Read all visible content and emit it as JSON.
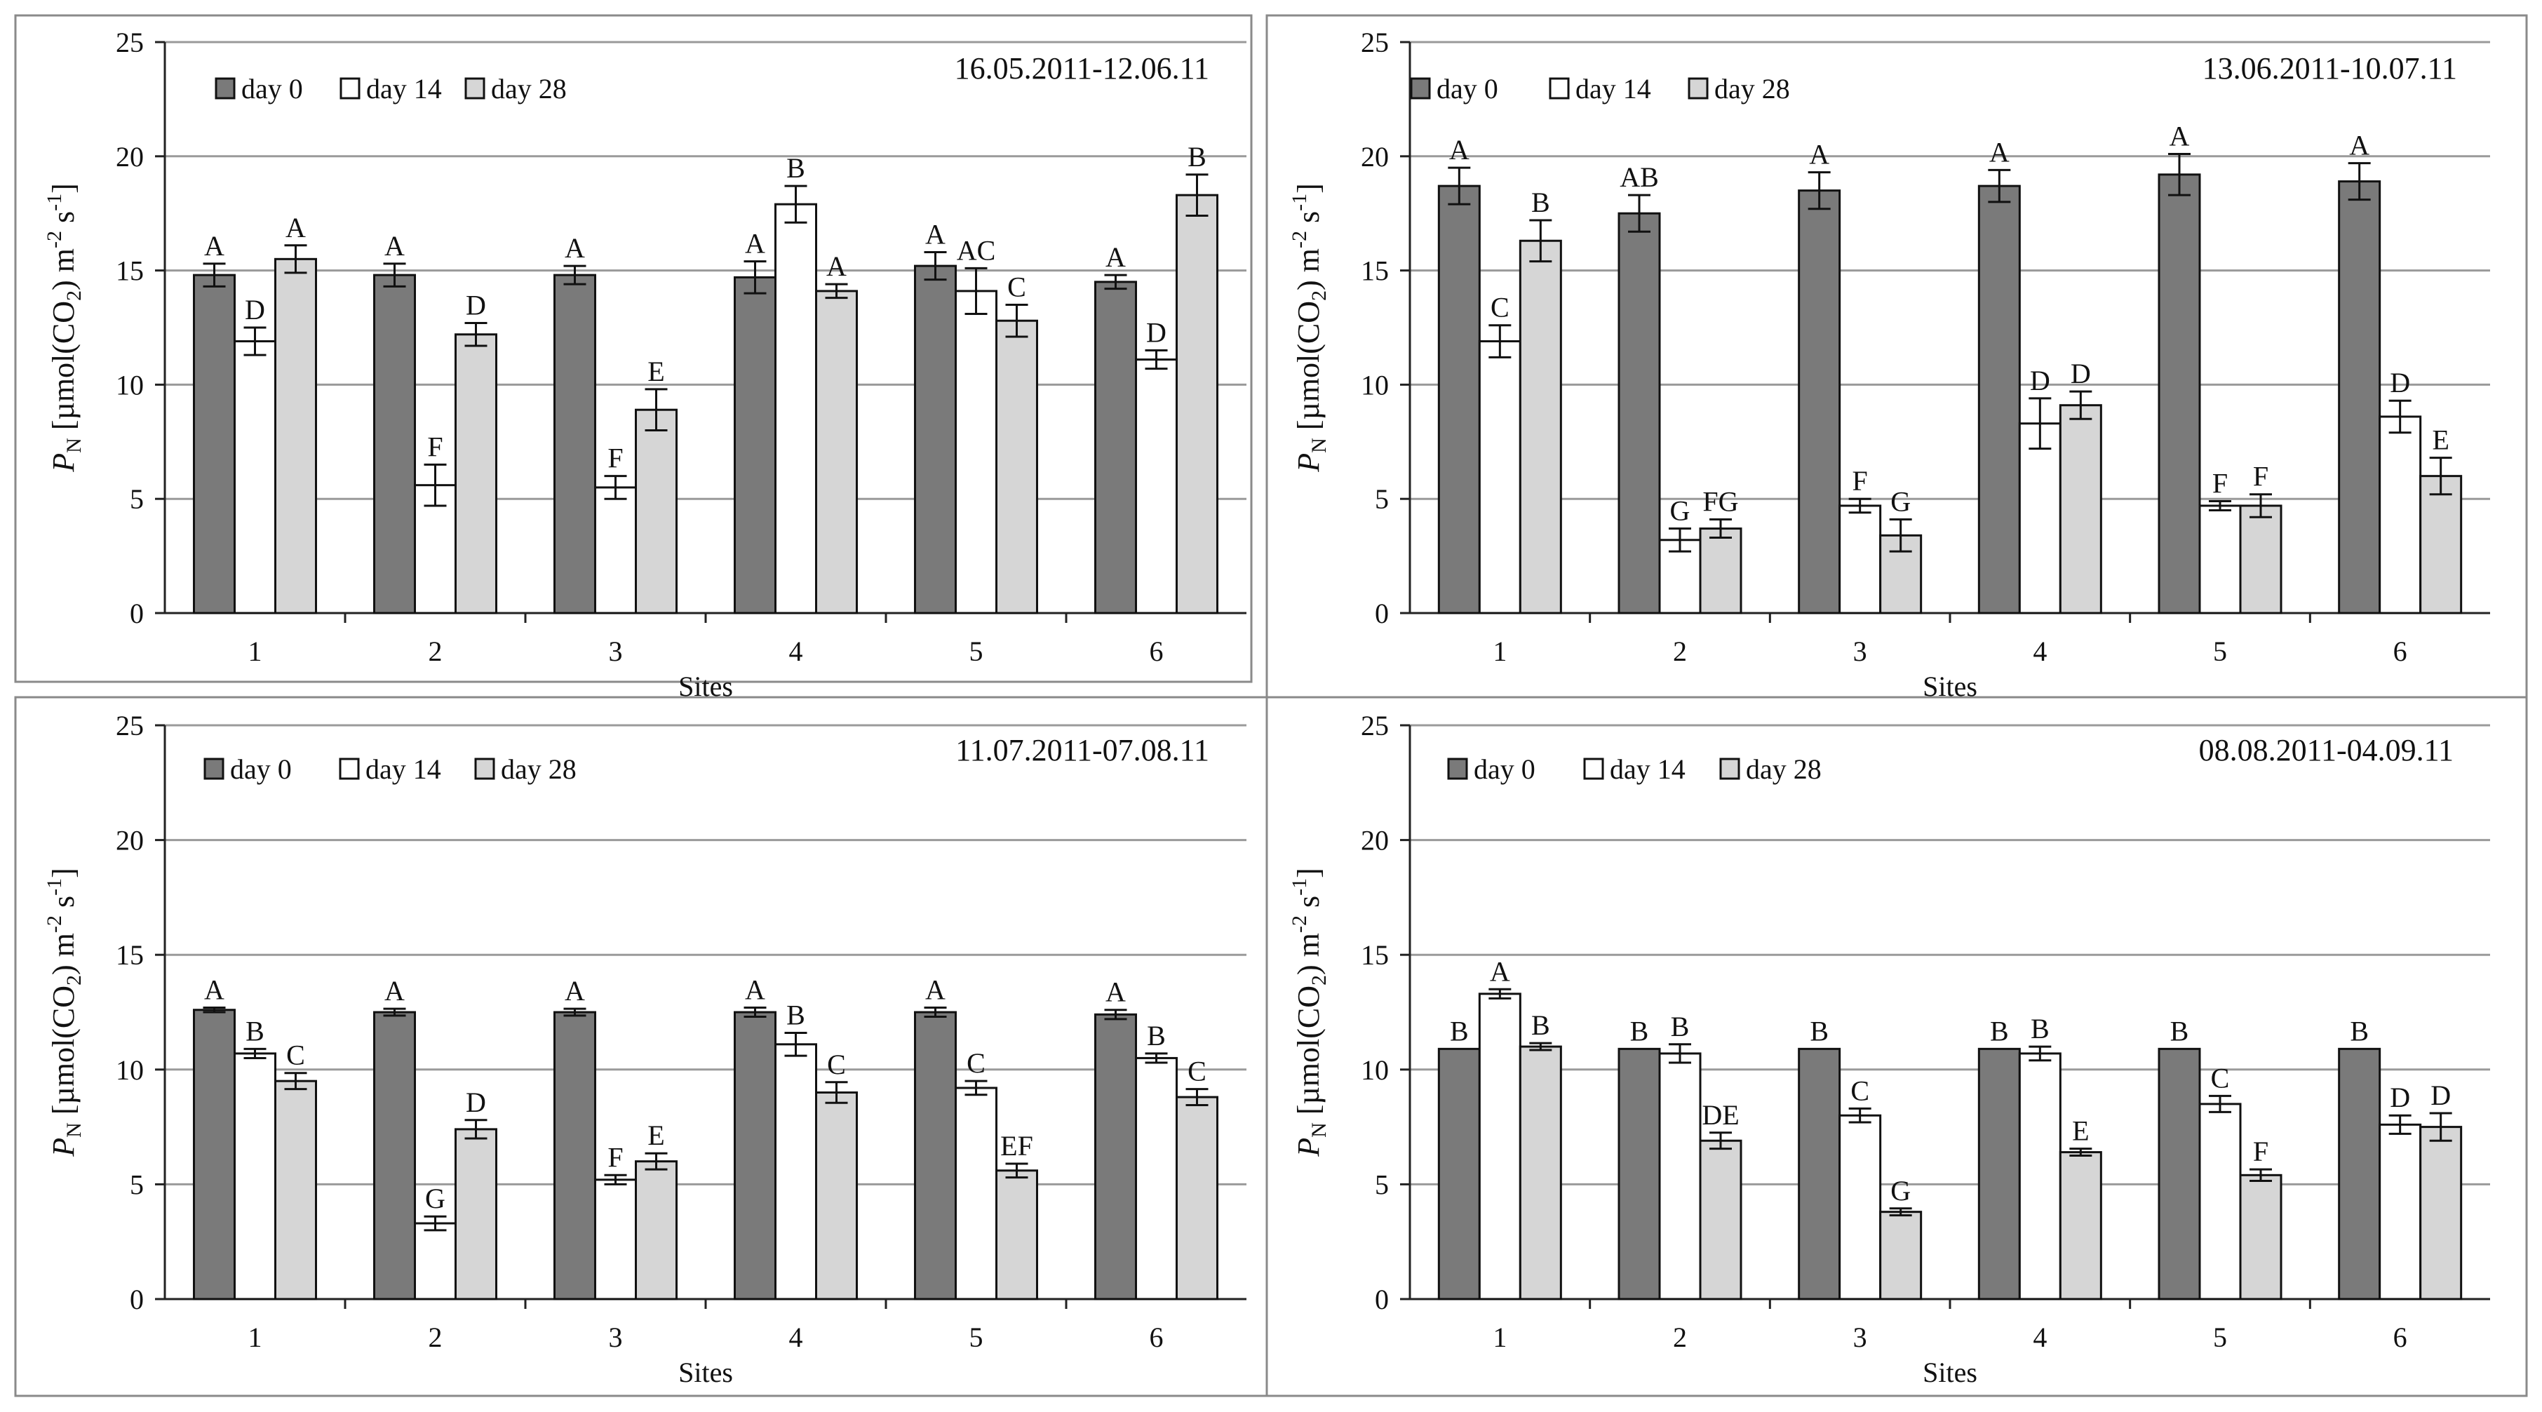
{
  "figure": {
    "series_names": [
      "day 0",
      "day 14",
      "day 28"
    ],
    "series_colors": [
      "#7a7a7a",
      "#ffffff",
      "#d6d6d6"
    ]
  },
  "chart_data": [
    {
      "type": "bar",
      "period": "16.05.2011-12.06.11",
      "xlabel": "Sites",
      "ylabel_main": "P",
      "ylabel_sub": "N",
      "ylabel_unit_parts": [
        " [µmol(CO",
        "2",
        ") m",
        "-2",
        " s",
        "-1",
        "]"
      ],
      "ylim": [
        0,
        25
      ],
      "yticks": [
        0,
        5,
        10,
        15,
        20,
        25
      ],
      "categories": [
        "1",
        "2",
        "3",
        "4",
        "5",
        "6"
      ],
      "series": [
        {
          "name": "day 0",
          "values": [
            14.8,
            14.8,
            14.8,
            14.7,
            15.2,
            14.5
          ],
          "errors": [
            0.5,
            0.5,
            0.4,
            0.7,
            0.6,
            0.3
          ],
          "letters": [
            "A",
            "A",
            "A",
            "A",
            "A",
            "A"
          ]
        },
        {
          "name": "day 14",
          "values": [
            11.9,
            5.6,
            5.5,
            17.9,
            14.1,
            11.1
          ],
          "errors": [
            0.6,
            0.9,
            0.5,
            0.8,
            1.0,
            0.4
          ],
          "letters": [
            "D",
            "F",
            "F",
            "B",
            "AC",
            "D"
          ]
        },
        {
          "name": "day 28",
          "values": [
            15.5,
            12.2,
            8.9,
            14.1,
            12.8,
            18.3
          ],
          "errors": [
            0.6,
            0.5,
            0.9,
            0.3,
            0.7,
            0.9
          ],
          "letters": [
            "A",
            "D",
            "E",
            "A",
            "C",
            "B"
          ]
        }
      ]
    },
    {
      "type": "bar",
      "period": "13.06.2011-10.07.11",
      "xlabel": "Sites",
      "ylabel_main": "P",
      "ylabel_sub": "N",
      "ylabel_unit_parts": [
        " [µmol(CO",
        "2",
        ") m",
        "-2",
        " s",
        "-1",
        "]"
      ],
      "ylim": [
        0,
        25
      ],
      "yticks": [
        0,
        5,
        10,
        15,
        20,
        25
      ],
      "categories": [
        "1",
        "2",
        "3",
        "4",
        "5",
        "6"
      ],
      "series": [
        {
          "name": "day 0",
          "values": [
            18.7,
            17.5,
            18.5,
            18.7,
            19.2,
            18.9
          ],
          "errors": [
            0.8,
            0.8,
            0.8,
            0.7,
            0.9,
            0.8
          ],
          "letters": [
            "A",
            "AB",
            "A",
            "A",
            "A",
            "A"
          ]
        },
        {
          "name": "day 14",
          "values": [
            11.9,
            3.2,
            4.7,
            8.3,
            4.7,
            8.6
          ],
          "errors": [
            0.7,
            0.5,
            0.3,
            1.1,
            0.2,
            0.7
          ],
          "letters": [
            "C",
            "G",
            "F",
            "D",
            "F",
            "D"
          ]
        },
        {
          "name": "day 28",
          "values": [
            16.3,
            3.7,
            3.4,
            9.1,
            4.7,
            6.0
          ],
          "errors": [
            0.9,
            0.4,
            0.7,
            0.6,
            0.5,
            0.8
          ],
          "letters": [
            "B",
            "FG",
            "G",
            "D",
            "F",
            "E"
          ]
        }
      ]
    },
    {
      "type": "bar",
      "period": "11.07.2011-07.08.11",
      "xlabel": "Sites",
      "ylabel_main": "P",
      "ylabel_sub": "N",
      "ylabel_unit_parts": [
        " [µmol(CO",
        "2",
        ") m",
        "-2",
        " s",
        "-1",
        "]"
      ],
      "ylim": [
        0,
        25
      ],
      "yticks": [
        0,
        5,
        10,
        15,
        20,
        25
      ],
      "categories": [
        "1",
        "2",
        "3",
        "4",
        "5",
        "6"
      ],
      "series": [
        {
          "name": "day 0",
          "values": [
            12.6,
            12.5,
            12.5,
            12.5,
            12.5,
            12.4
          ],
          "errors": [
            0.1,
            0.15,
            0.15,
            0.2,
            0.2,
            0.2
          ],
          "letters": [
            "A",
            "A",
            "A",
            "A",
            "A",
            "A"
          ]
        },
        {
          "name": "day 14",
          "values": [
            10.7,
            3.3,
            5.2,
            11.1,
            9.2,
            10.5
          ],
          "errors": [
            0.2,
            0.3,
            0.2,
            0.5,
            0.3,
            0.2
          ],
          "letters": [
            "B",
            "G",
            "F",
            "B",
            "C",
            "B"
          ]
        },
        {
          "name": "day 28",
          "values": [
            9.5,
            7.4,
            6.0,
            9.0,
            5.6,
            8.8
          ],
          "errors": [
            0.35,
            0.4,
            0.35,
            0.45,
            0.3,
            0.35
          ],
          "letters": [
            "C",
            "D",
            "E",
            "C",
            "EF",
            "C"
          ]
        }
      ]
    },
    {
      "type": "bar",
      "period": "08.08.2011-04.09.11",
      "xlabel": "Sites",
      "ylabel_main": "P",
      "ylabel_sub": "N",
      "ylabel_unit_parts": [
        " [µmol(CO",
        "2",
        ") m",
        "-2",
        " s",
        "-1",
        "]"
      ],
      "ylim": [
        0,
        25
      ],
      "yticks": [
        0,
        5,
        10,
        15,
        20,
        25
      ],
      "categories": [
        "1",
        "2",
        "3",
        "4",
        "5",
        "6"
      ],
      "series": [
        {
          "name": "day 0",
          "values": [
            10.9,
            10.9,
            10.9,
            10.9,
            10.9,
            10.9
          ],
          "errors": [
            0,
            0,
            0,
            0,
            0,
            0
          ],
          "letters": [
            "B",
            "B",
            "B",
            "B",
            "B",
            "B"
          ]
        },
        {
          "name": "day 14",
          "values": [
            13.3,
            10.7,
            8.0,
            10.7,
            8.5,
            7.6
          ],
          "errors": [
            0.2,
            0.4,
            0.3,
            0.3,
            0.35,
            0.4
          ],
          "letters": [
            "A",
            "B",
            "C",
            "B",
            "C",
            "D"
          ]
        },
        {
          "name": "day 28",
          "values": [
            11.0,
            6.9,
            3.8,
            6.4,
            5.4,
            7.5
          ],
          "errors": [
            0.15,
            0.35,
            0.15,
            0.15,
            0.25,
            0.6
          ],
          "letters": [
            "B",
            "DE",
            "G",
            "E",
            "F",
            "D"
          ]
        }
      ]
    }
  ]
}
